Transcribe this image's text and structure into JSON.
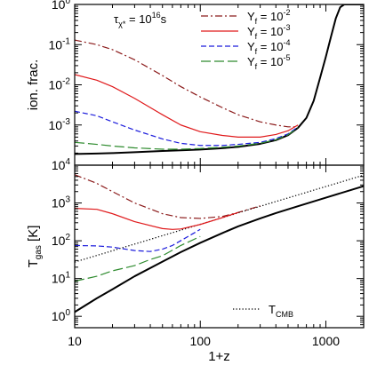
{
  "chart_data": [
    {
      "type": "line",
      "panel": "top",
      "ylabel": "ion. frac.",
      "xscale": "log",
      "yscale": "log",
      "xlim": [
        10,
        2000
      ],
      "ylim": [
        0.0001,
        1
      ],
      "y_ticks": [
        {
          "v": 0.001,
          "base": "10",
          "exp": "-3"
        },
        {
          "v": 0.01,
          "base": "10",
          "exp": "-2"
        },
        {
          "v": 0.1,
          "base": "10",
          "exp": "-1"
        },
        {
          "v": 1,
          "base": "10",
          "exp": "0"
        }
      ],
      "annotation": {
        "base": "τ",
        "sub": "χ*",
        "text": " = 10",
        "sup": "16",
        "unit": "s"
      },
      "legend": {
        "placement": "top-right",
        "entries": [
          {
            "base": "Y",
            "sub": "f",
            "eq": " = 10",
            "sup": "-2",
            "color": "#8b1a1a",
            "dash": "dashdot"
          },
          {
            "base": "Y",
            "sub": "f",
            "eq": " = 10",
            "sup": "-3",
            "color": "#e0191b",
            "dash": "solid"
          },
          {
            "base": "Y",
            "sub": "f",
            "eq": " = 10",
            "sup": "-4",
            "color": "#1c1cdc",
            "dash": "dashed"
          },
          {
            "base": "Y",
            "sub": "f",
            "eq": " = 10",
            "sup": "-5",
            "color": "#2e8b2e",
            "dash": "longdash"
          }
        ]
      },
      "series": [
        {
          "key": "std",
          "color": "#000000",
          "dash": "solid",
          "width": 2,
          "x": [
            10,
            15,
            20,
            30,
            50,
            70,
            100,
            150,
            200,
            300,
            400,
            500,
            600,
            700,
            800,
            900,
            1000,
            1100,
            1200,
            1300,
            1400,
            1600,
            2000
          ],
          "y": [
            0.00019,
            0.000195,
            0.0002,
            0.00021,
            0.000225,
            0.000235,
            0.000245,
            0.000265,
            0.000285,
            0.00034,
            0.00042,
            0.00056,
            0.00085,
            0.0015,
            0.004,
            0.015,
            0.05,
            0.16,
            0.45,
            0.85,
            1,
            1,
            1
          ]
        },
        {
          "key": "m2",
          "color": "#8b1a1a",
          "dash": "dashdot",
          "width": 1.2,
          "x": [
            10,
            15,
            20,
            30,
            50,
            70,
            100,
            150,
            200,
            300,
            400,
            500,
            600
          ],
          "y": [
            0.13,
            0.1,
            0.075,
            0.042,
            0.017,
            0.009,
            0.005,
            0.0027,
            0.0018,
            0.0012,
            0.001,
            0.0009,
            0.0009
          ]
        },
        {
          "key": "m3",
          "color": "#e0191b",
          "dash": "solid",
          "width": 1.2,
          "x": [
            10,
            15,
            20,
            30,
            50,
            70,
            100,
            150,
            200,
            300,
            400,
            500,
            600
          ],
          "y": [
            0.018,
            0.013,
            0.009,
            0.0046,
            0.0018,
            0.001,
            0.00068,
            0.00055,
            0.0005,
            0.0005,
            0.00058,
            0.00072,
            0.001
          ]
        },
        {
          "key": "m4",
          "color": "#1c1cdc",
          "dash": "dashed",
          "width": 1.2,
          "x": [
            10,
            15,
            20,
            30,
            50,
            70,
            100,
            150,
            200,
            300,
            400,
            500,
            600
          ],
          "y": [
            0.0022,
            0.0017,
            0.0012,
            0.00075,
            0.00045,
            0.00035,
            0.00031,
            0.00031,
            0.00033,
            0.00037,
            0.00046,
            0.0006,
            0.0009
          ]
        },
        {
          "key": "m5",
          "color": "#2e8b2e",
          "dash": "longdash",
          "width": 1.2,
          "x": [
            10,
            15,
            20,
            30,
            50,
            70,
            100,
            150,
            200,
            300,
            400,
            500,
            600
          ],
          "y": [
            0.00037,
            0.00033,
            0.0003,
            0.00027,
            0.00025,
            0.00025,
            0.00026,
            0.00028,
            0.0003,
            0.00035,
            0.00043,
            0.00057,
            0.00086
          ]
        }
      ]
    },
    {
      "type": "line",
      "panel": "bottom",
      "xlabel": "1+z",
      "ylabel": {
        "base": "T",
        "sub": "gas",
        "unit": " [K]"
      },
      "xscale": "log",
      "yscale": "log",
      "xlim": [
        10,
        2000
      ],
      "ylim": [
        0.5,
        10000
      ],
      "x_ticks": [
        {
          "v": 10,
          "label": "10"
        },
        {
          "v": 100,
          "label": "100"
        },
        {
          "v": 1000,
          "label": "1000"
        }
      ],
      "y_ticks": [
        {
          "v": 1,
          "base": "10",
          "exp": "0"
        },
        {
          "v": 10,
          "base": "10",
          "exp": "1"
        },
        {
          "v": 100,
          "base": "10",
          "exp": "2"
        },
        {
          "v": 1000,
          "base": "10",
          "exp": "3"
        },
        {
          "v": 10000,
          "base": "10",
          "exp": "4"
        }
      ],
      "legend": {
        "placement": "bottom-right",
        "entries": [
          {
            "base": "T",
            "sub": "CMB",
            "color": "#000000",
            "dash": "dotted"
          }
        ]
      },
      "series": [
        {
          "key": "cmb",
          "color": "#000000",
          "dash": "dotted",
          "width": 1.2,
          "x": [
            10,
            2000
          ],
          "y": [
            27.25,
            5450
          ]
        },
        {
          "key": "std",
          "color": "#000000",
          "dash": "solid",
          "width": 2,
          "x": [
            10,
            15,
            20,
            30,
            50,
            70,
            100,
            150,
            200,
            300,
            400,
            600,
            1000,
            2000
          ],
          "y": [
            1.3,
            3,
            5.2,
            11.5,
            28,
            50,
            88,
            160,
            240,
            390,
            540,
            820,
            1380,
            2800
          ]
        },
        {
          "key": "m2",
          "color": "#8b1a1a",
          "dash": "dashdot",
          "width": 1.2,
          "x": [
            10,
            15,
            20,
            30,
            50,
            70,
            100,
            150,
            200,
            300
          ],
          "y": [
            5600,
            3300,
            2000,
            1000,
            520,
            410,
            390,
            440,
            560,
            840
          ]
        },
        {
          "key": "m3",
          "color": "#e0191b",
          "dash": "solid",
          "width": 1.2,
          "x": [
            10,
            15,
            20,
            30,
            50,
            60,
            70,
            100,
            150,
            200
          ],
          "y": [
            720,
            680,
            520,
            320,
            210,
            200,
            205,
            270,
            410,
            560
          ]
        },
        {
          "key": "m4",
          "color": "#1c1cdc",
          "dash": "dashed",
          "width": 1.2,
          "x": [
            10,
            15,
            20,
            30,
            40,
            50,
            60,
            80,
            100
          ],
          "y": [
            75,
            73,
            68,
            55,
            52,
            60,
            75,
            130,
            200
          ]
        },
        {
          "key": "m5",
          "color": "#2e8b2e",
          "dash": "longdash",
          "width": 1.2,
          "x": [
            10,
            15,
            20,
            30,
            40,
            50,
            70,
            100
          ],
          "y": [
            8.5,
            11.5,
            16,
            22,
            32,
            40,
            75,
            130
          ]
        }
      ]
    }
  ]
}
